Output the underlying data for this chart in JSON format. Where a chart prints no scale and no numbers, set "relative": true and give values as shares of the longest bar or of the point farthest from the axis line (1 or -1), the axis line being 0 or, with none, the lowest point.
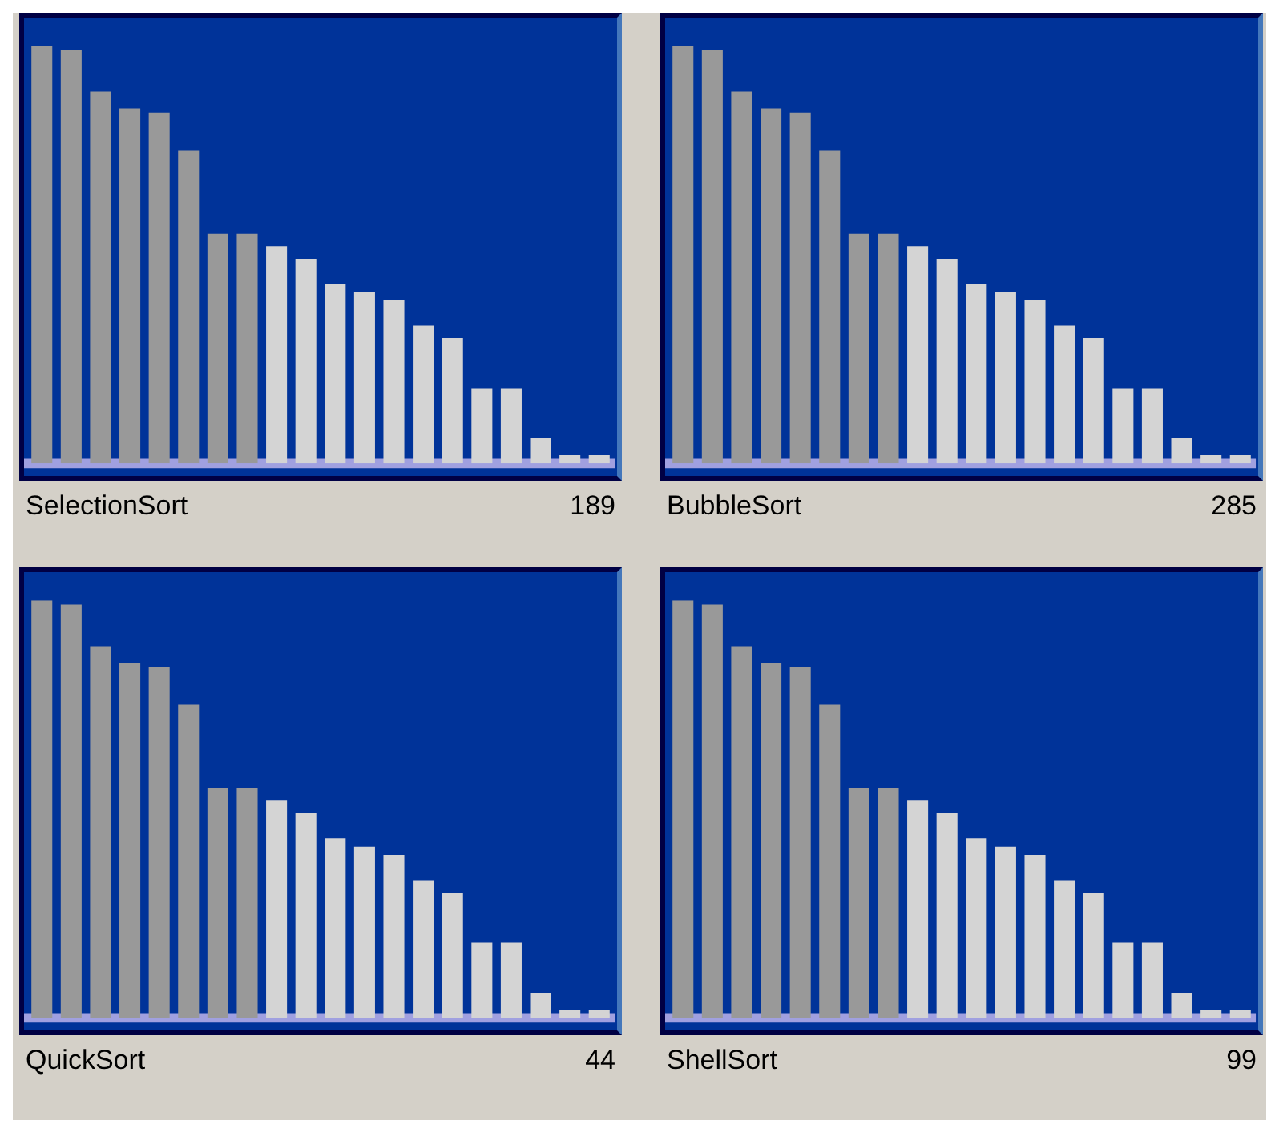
{
  "chart_data": [
    {
      "type": "bar",
      "relative": true,
      "title": "SelectionSort",
      "annotations": [
        "189"
      ],
      "categories": [
        null,
        null,
        null,
        null,
        null,
        null,
        null,
        null,
        null,
        null,
        null,
        null,
        null,
        null,
        null,
        null,
        null,
        null,
        null,
        null
      ],
      "values": [
        1,
        0.99,
        0.89,
        0.85,
        0.84,
        0.75,
        0.55,
        0.55,
        0.52,
        0.49,
        0.43,
        0.41,
        0.39,
        0.33,
        0.3,
        0.18,
        0.18,
        0.06,
        0.02,
        0.02
      ],
      "colors": [
        "#999999",
        "#999999",
        "#999999",
        "#999999",
        "#999999",
        "#999999",
        "#999999",
        "#999999",
        "#d4d4d4",
        "#d4d4d4",
        "#d4d4d4",
        "#d4d4d4",
        "#d4d4d4",
        "#d4d4d4",
        "#d4d4d4",
        "#d4d4d4",
        "#d4d4d4",
        "#d4d4d4",
        "#d4d4d4",
        "#d4d4d4"
      ]
    },
    {
      "type": "bar",
      "relative": true,
      "title": "BubbleSort",
      "annotations": [
        "285"
      ],
      "categories": [
        null,
        null,
        null,
        null,
        null,
        null,
        null,
        null,
        null,
        null,
        null,
        null,
        null,
        null,
        null,
        null,
        null,
        null,
        null,
        null
      ],
      "values": [
        1,
        0.99,
        0.89,
        0.85,
        0.84,
        0.75,
        0.55,
        0.55,
        0.52,
        0.49,
        0.43,
        0.41,
        0.39,
        0.33,
        0.3,
        0.18,
        0.18,
        0.06,
        0.02,
        0.02
      ],
      "colors": [
        "#999999",
        "#999999",
        "#999999",
        "#999999",
        "#999999",
        "#999999",
        "#999999",
        "#999999",
        "#d4d4d4",
        "#d4d4d4",
        "#d4d4d4",
        "#d4d4d4",
        "#d4d4d4",
        "#d4d4d4",
        "#d4d4d4",
        "#d4d4d4",
        "#d4d4d4",
        "#d4d4d4",
        "#d4d4d4",
        "#d4d4d4"
      ]
    },
    {
      "type": "bar",
      "relative": true,
      "title": "QuickSort",
      "annotations": [
        "44"
      ],
      "categories": [
        null,
        null,
        null,
        null,
        null,
        null,
        null,
        null,
        null,
        null,
        null,
        null,
        null,
        null,
        null,
        null,
        null,
        null,
        null,
        null
      ],
      "values": [
        1,
        0.99,
        0.89,
        0.85,
        0.84,
        0.75,
        0.55,
        0.55,
        0.52,
        0.49,
        0.43,
        0.41,
        0.39,
        0.33,
        0.3,
        0.18,
        0.18,
        0.06,
        0.02,
        0.02
      ],
      "colors": [
        "#999999",
        "#999999",
        "#999999",
        "#999999",
        "#999999",
        "#999999",
        "#999999",
        "#999999",
        "#d4d4d4",
        "#d4d4d4",
        "#d4d4d4",
        "#d4d4d4",
        "#d4d4d4",
        "#d4d4d4",
        "#d4d4d4",
        "#d4d4d4",
        "#d4d4d4",
        "#d4d4d4",
        "#d4d4d4",
        "#d4d4d4"
      ]
    },
    {
      "type": "bar",
      "relative": true,
      "title": "ShellSort",
      "annotations": [
        "99"
      ],
      "categories": [
        null,
        null,
        null,
        null,
        null,
        null,
        null,
        null,
        null,
        null,
        null,
        null,
        null,
        null,
        null,
        null,
        null,
        null,
        null,
        null
      ],
      "values": [
        1,
        0.99,
        0.89,
        0.85,
        0.84,
        0.75,
        0.55,
        0.55,
        0.52,
        0.49,
        0.43,
        0.41,
        0.39,
        0.33,
        0.3,
        0.18,
        0.18,
        0.06,
        0.02,
        0.02
      ],
      "colors": [
        "#999999",
        "#999999",
        "#999999",
        "#999999",
        "#999999",
        "#999999",
        "#999999",
        "#999999",
        "#d4d4d4",
        "#d4d4d4",
        "#d4d4d4",
        "#d4d4d4",
        "#d4d4d4",
        "#d4d4d4",
        "#d4d4d4",
        "#d4d4d4",
        "#d4d4d4",
        "#d4d4d4",
        "#d4d4d4",
        "#d4d4d4"
      ]
    }
  ]
}
